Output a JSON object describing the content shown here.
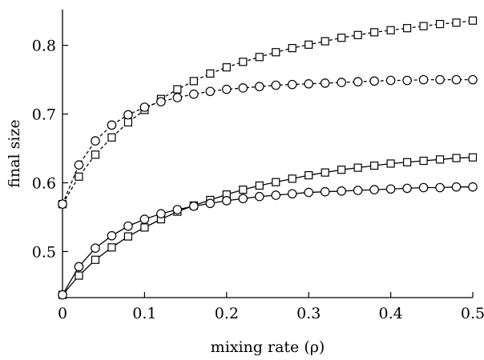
{
  "chart_data": {
    "type": "line",
    "xlabel": "mixing rate (ρ)",
    "ylabel": "final size",
    "xlim": [
      0,
      0.5
    ],
    "ylim": [
      0.433,
      0.852
    ],
    "x_ticks": [
      0,
      0.1,
      0.2,
      0.3,
      0.4,
      0.5
    ],
    "y_ticks": [
      0.5,
      0.6,
      0.7,
      0.8
    ],
    "x_tick_labels": [
      "0",
      "0.1",
      "0.2",
      "0.3",
      "0.4",
      "0.5"
    ],
    "y_tick_labels": [
      "0.5",
      "0.6",
      "0.7",
      "0.8"
    ],
    "grid": false,
    "legend": "none",
    "x": [
      0,
      0.02,
      0.04,
      0.06,
      0.08,
      0.1,
      0.12,
      0.14,
      0.16,
      0.18,
      0.2,
      0.22,
      0.24,
      0.26,
      0.28,
      0.3,
      0.32,
      0.34,
      0.36,
      0.38,
      0.4,
      0.42,
      0.44,
      0.46,
      0.48,
      0.5
    ],
    "series": [
      {
        "line": "dashed",
        "marker": "square",
        "values": [
          0.569,
          0.609,
          0.641,
          0.666,
          0.688,
          0.706,
          0.722,
          0.736,
          0.748,
          0.759,
          0.768,
          0.776,
          0.783,
          0.79,
          0.796,
          0.801,
          0.806,
          0.811,
          0.815,
          0.819,
          0.822,
          0.825,
          0.828,
          0.831,
          0.833,
          0.836
        ]
      },
      {
        "line": "dashed",
        "marker": "circle",
        "values": [
          0.569,
          0.626,
          0.661,
          0.684,
          0.699,
          0.71,
          0.718,
          0.724,
          0.729,
          0.733,
          0.736,
          0.738,
          0.74,
          0.742,
          0.743,
          0.744,
          0.745,
          0.746,
          0.747,
          0.748,
          0.749,
          0.749,
          0.75,
          0.75,
          0.75,
          0.75
        ]
      },
      {
        "line": "solid",
        "marker": "square",
        "values": [
          0.437,
          0.465,
          0.488,
          0.506,
          0.522,
          0.535,
          0.547,
          0.558,
          0.567,
          0.575,
          0.583,
          0.59,
          0.596,
          0.601,
          0.606,
          0.611,
          0.615,
          0.619,
          0.622,
          0.625,
          0.628,
          0.63,
          0.632,
          0.634,
          0.636,
          0.637
        ]
      },
      {
        "line": "solid",
        "marker": "circle",
        "values": [
          0.437,
          0.478,
          0.505,
          0.523,
          0.537,
          0.547,
          0.555,
          0.561,
          0.566,
          0.57,
          0.574,
          0.577,
          0.58,
          0.582,
          0.584,
          0.586,
          0.587,
          0.588,
          0.589,
          0.59,
          0.591,
          0.592,
          0.593,
          0.593,
          0.594,
          0.594
        ]
      }
    ]
  }
}
